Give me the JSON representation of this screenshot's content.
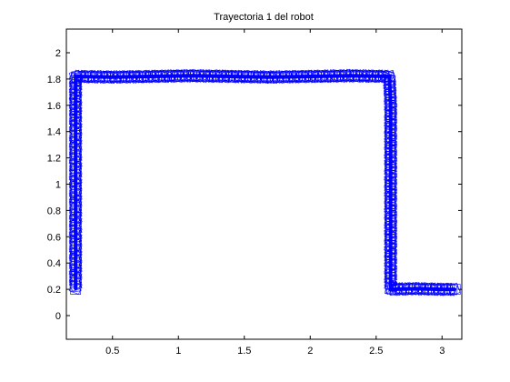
{
  "chart_data": {
    "type": "line",
    "title": "Trayectoria 1 del robot",
    "xlabel": "",
    "ylabel": "",
    "xlim": [
      0.15,
      3.15
    ],
    "ylim": [
      -0.18,
      2.18
    ],
    "x_ticks": [
      0.5,
      1,
      1.5,
      2,
      2.5,
      3
    ],
    "x_tick_labels": [
      "0.5",
      "1",
      "1.5",
      "2",
      "2.5",
      "3"
    ],
    "y_ticks": [
      0,
      0.2,
      0.4,
      0.6,
      0.8,
      1,
      1.2,
      1.4,
      1.6,
      1.8,
      2
    ],
    "y_tick_labels": [
      "0",
      "0.2",
      "0.4",
      "0.6",
      "0.8",
      "1",
      "1.2",
      "1.4",
      "1.6",
      "1.8",
      "2"
    ],
    "grid": false,
    "colors": {
      "series": "#0000ff",
      "axes": "#000000",
      "background": "#ffffff"
    },
    "series": [
      {
        "x": [
          0.22,
          0.22,
          0.22,
          0.22,
          0.22,
          0.22,
          0.22,
          0.22,
          0.22,
          0.22,
          0.5,
          0.8,
          1.1,
          1.4,
          1.7,
          2.0,
          2.3,
          2.6,
          2.61,
          2.61,
          2.61,
          2.61,
          2.61,
          2.61,
          2.61,
          2.61,
          2.61,
          2.61,
          2.8,
          3.0,
          3.1
        ],
        "y": [
          0.2,
          0.36,
          0.52,
          0.68,
          0.84,
          1.0,
          1.16,
          1.32,
          1.48,
          1.82,
          1.815,
          1.82,
          1.825,
          1.82,
          1.815,
          1.82,
          1.825,
          1.82,
          1.6,
          1.4,
          1.2,
          1.0,
          0.8,
          0.6,
          0.4,
          0.22,
          0.21,
          0.2,
          0.205,
          0.2,
          0.2
        ]
      }
    ]
  }
}
